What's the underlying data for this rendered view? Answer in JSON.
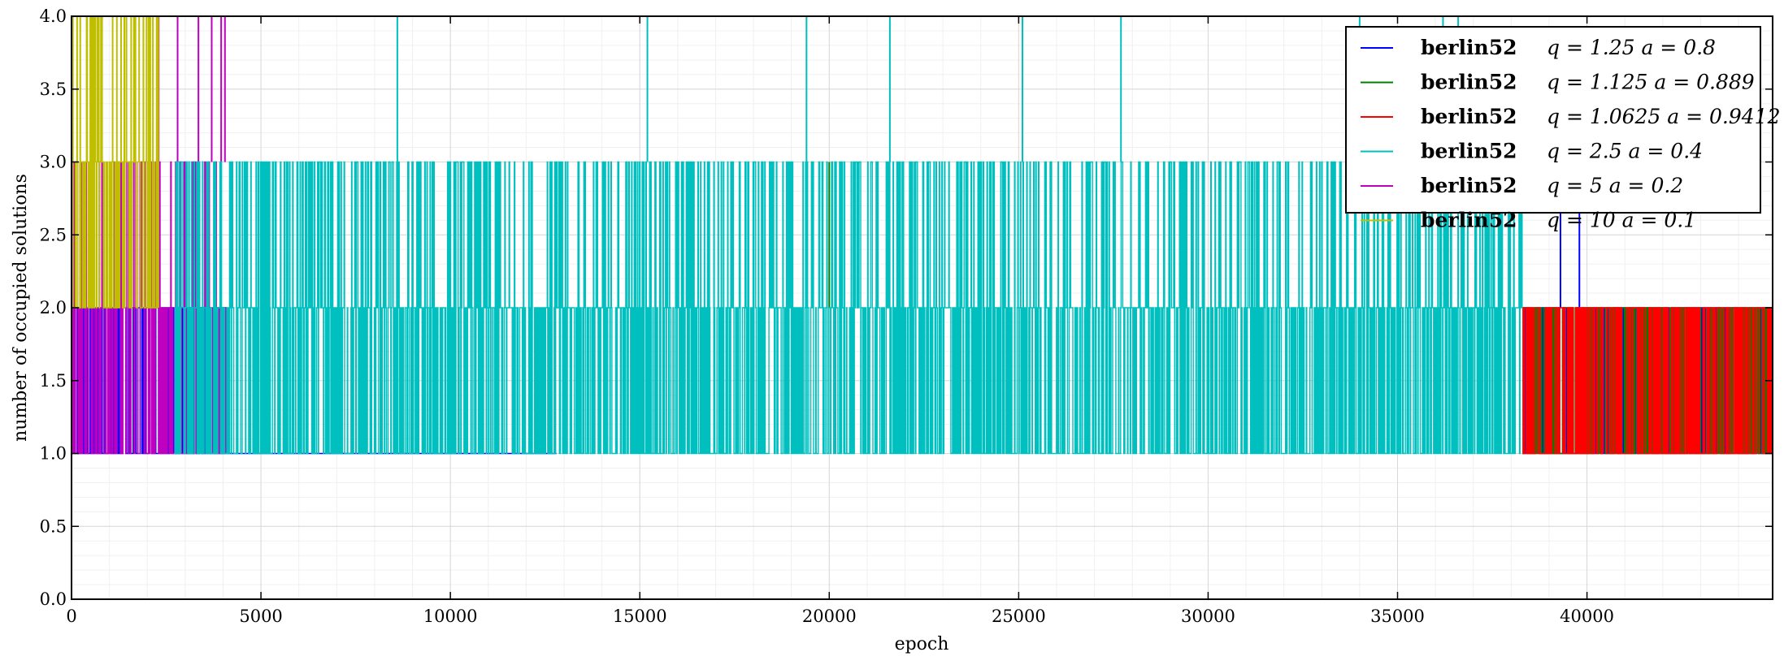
{
  "chart_data": {
    "type": "line",
    "xlabel": "epoch",
    "ylabel": "number of occupied solutions",
    "xlim": [
      0,
      44900
    ],
    "ylim": [
      0.0,
      4.0
    ],
    "x_ticks": [
      "0",
      "5000",
      "10000",
      "15000",
      "20000",
      "25000",
      "30000",
      "35000",
      "40000"
    ],
    "y_ticks": [
      "0.0",
      "0.5",
      "1.0",
      "1.5",
      "2.0",
      "2.5",
      "3.0",
      "3.5",
      "4.0"
    ],
    "grid": true,
    "legend_position": "top-right",
    "series": [
      {
        "name": "berlin52",
        "params": "q = 1.25  a = 0.8",
        "color": "#0000ff",
        "description": "oscillates 1–2 (occasionally 3) until ~12800 flat at 1, later 1–2 band with spikes to 3 near 39300 and 39800",
        "segments": [
          {
            "x_start": 0,
            "x_end": 4100,
            "values": [
              1,
              2
            ]
          },
          {
            "x_start": 4100,
            "x_end": 12800,
            "values": [
              1
            ]
          },
          {
            "x_start": 38300,
            "x_end": 44900,
            "values": [
              1,
              2
            ]
          }
        ],
        "spikes": [
          {
            "x": 39300,
            "y": 3
          },
          {
            "x": 39800,
            "y": 3
          }
        ]
      },
      {
        "name": "berlin52",
        "params": "q = 1.125  a = 0.889",
        "color": "#008000",
        "segments": [
          {
            "x_start": 38300,
            "x_end": 44900,
            "values": [
              1,
              2
            ]
          }
        ],
        "spikes": [
          {
            "x": 20000,
            "y": 3
          },
          {
            "x": 37400,
            "y": 3
          }
        ]
      },
      {
        "name": "berlin52",
        "params": "q = 1.0625  a = 0.9412",
        "color": "#ff0000",
        "segments": [
          {
            "x_start": 38300,
            "x_end": 44900,
            "values": [
              1,
              2
            ]
          }
        ],
        "spikes": [
          {
            "x": 600,
            "y": 4
          }
        ]
      },
      {
        "name": "berlin52",
        "params": "q = 2.5  a = 0.4",
        "color": "#00bfbf",
        "segments": [
          {
            "x_start": 2700,
            "x_end": 38300,
            "values": [
              1,
              2,
              3
            ]
          }
        ],
        "spikes": [
          {
            "x": 8600,
            "y": 4
          },
          {
            "x": 15200,
            "y": 4
          },
          {
            "x": 19400,
            "y": 4
          },
          {
            "x": 21600,
            "y": 4
          },
          {
            "x": 25100,
            "y": 4
          },
          {
            "x": 27700,
            "y": 4
          },
          {
            "x": 34000,
            "y": 4
          },
          {
            "x": 36200,
            "y": 4
          },
          {
            "x": 36600,
            "y": 4
          }
        ]
      },
      {
        "name": "berlin52",
        "params": "q = 5  a = 0.2",
        "color": "#bf00bf",
        "segments": [
          {
            "x_start": 0,
            "x_end": 4100,
            "values": [
              1,
              2,
              3
            ]
          }
        ],
        "spikes": [
          {
            "x": 2300,
            "y": 4
          },
          {
            "x": 2800,
            "y": 4
          },
          {
            "x": 3350,
            "y": 4
          },
          {
            "x": 3700,
            "y": 4
          },
          {
            "x": 3950,
            "y": 4
          },
          {
            "x": 4050,
            "y": 4
          }
        ]
      },
      {
        "name": "berlin52",
        "params": "q = 10  a = 0.1",
        "color": "#bfbf00",
        "segments": [
          {
            "x_start": 0,
            "x_end": 2300,
            "values": [
              2,
              3,
              4
            ]
          }
        ]
      }
    ]
  }
}
